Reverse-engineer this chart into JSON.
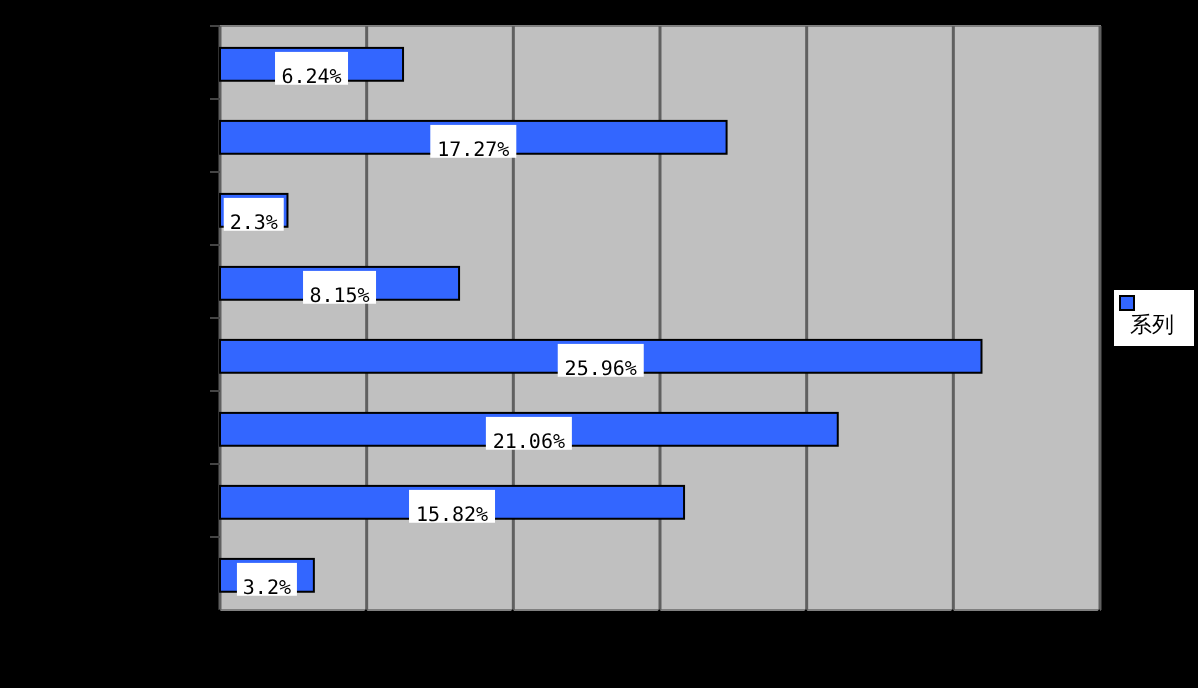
{
  "chart_data": {
    "type": "bar",
    "orientation": "horizontal",
    "categories": [
      null,
      null,
      null,
      null,
      null,
      null,
      null,
      null
    ],
    "series": [
      {
        "name": "系列",
        "color": "#3366ff",
        "values": [
          6.24,
          17.27,
          2.3,
          8.15,
          25.96,
          21.06,
          15.82,
          3.2
        ],
        "value_labels": [
          "6.24%",
          "17.27%",
          "2.3%",
          "8.15%",
          "25.96%",
          "21.06%",
          "15.82%",
          "3.2%"
        ]
      }
    ],
    "xlim": [
      0,
      30
    ],
    "xticks": [
      {
        "value": 0,
        "label": null
      },
      {
        "value": 5,
        "label": null
      },
      {
        "value": 10,
        "label": null
      },
      {
        "value": 15,
        "label": null
      },
      {
        "value": 20,
        "label": null
      },
      {
        "value": 25,
        "label": null
      },
      {
        "value": 30,
        "label": null
      }
    ],
    "grid": "x",
    "legend": "right"
  }
}
